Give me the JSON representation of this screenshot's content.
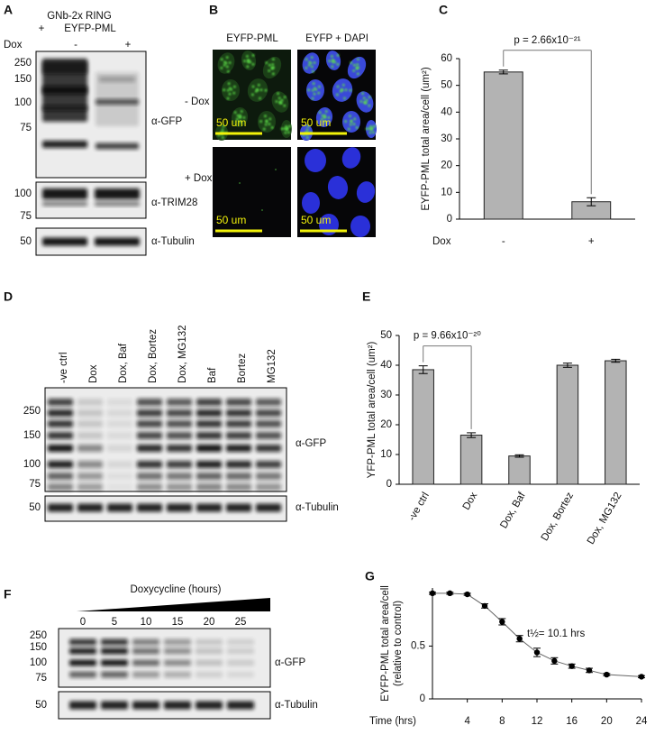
{
  "blot_a": {
    "panel": "A",
    "construct_line1": "GNb-2x RING",
    "construct_plus": "+",
    "construct_line2": "EYFP-PML",
    "dox": "Dox",
    "lanes": [
      "-",
      "+"
    ],
    "markers_gfp": [
      250,
      150,
      100,
      75
    ],
    "markers_trim": [
      100,
      75
    ],
    "markers_tub": [
      50
    ],
    "antibodies": [
      "α-GFP",
      "α-TRIM28",
      "α-Tubulin"
    ]
  },
  "micro_b": {
    "panel": "B",
    "columns": [
      "EYFP-PML",
      "EYFP + DAPI"
    ],
    "rows": [
      "- Dox",
      "+ Dox"
    ],
    "scale_bar": "50 um"
  },
  "blot_d": {
    "panel": "D",
    "lanes": [
      "-ve ctrl",
      "Dox",
      "Dox, Baf",
      "Dox, Bortez",
      "Dox, MG132",
      "Baf",
      "Bortez",
      "MG132"
    ],
    "markers_gfp": [
      250,
      150,
      100,
      75
    ],
    "markers_tub": [
      50
    ],
    "antibodies": [
      "α-GFP",
      "α-Tubulin"
    ]
  },
  "blot_f": {
    "panel": "F",
    "title": "Doxycycline (hours)",
    "lanes": [
      0,
      5,
      10,
      15,
      20,
      25
    ],
    "markers_gfp": [
      250,
      150,
      100,
      75
    ],
    "markers_tub": [
      50
    ],
    "antibodies": [
      "α-GFP",
      "α-Tubulin"
    ]
  },
  "chart_data": [
    {
      "type": "bar",
      "panel": "C",
      "y_label": "EYFP-PML total area/cell (um²)",
      "x_label": "Dox",
      "categories": [
        "-",
        "+"
      ],
      "values": [
        55,
        6.5
      ],
      "errors": [
        0.7,
        1.5
      ],
      "color": "#b3b3b3",
      "ylim": [
        0,
        60
      ],
      "yticks": [
        0,
        10,
        20,
        30,
        40,
        50,
        60
      ],
      "annotation": "p = 2.66x10⁻²¹"
    },
    {
      "type": "bar",
      "panel": "E",
      "y_label": "YFP-PML total area/cell (um²)",
      "categories": [
        "-ve ctrl",
        "Dox",
        "Dox, Baf",
        "Dox, Bortez",
        "Dox, MG132"
      ],
      "values": [
        38.5,
        16.5,
        9.5,
        40,
        41.5
      ],
      "errors": [
        1.3,
        0.8,
        0.4,
        0.7,
        0.5
      ],
      "color": "#b3b3b3",
      "ylim": [
        0,
        50
      ],
      "yticks": [
        0,
        10,
        20,
        30,
        40,
        50
      ],
      "annotation": "p = 9.66x10⁻²⁰"
    },
    {
      "type": "line",
      "panel": "G",
      "y_label": [
        "EYFP-PML total area/cell",
        "(relative to control)"
      ],
      "x_label": "Time (hrs)",
      "x": [
        0,
        2,
        4,
        6,
        8,
        10,
        12,
        14,
        16,
        18,
        20,
        24
      ],
      "values": [
        1,
        1,
        0.99,
        0.88,
        0.73,
        0.57,
        0.44,
        0.36,
        0.31,
        0.27,
        0.23,
        0.21
      ],
      "errors": [
        0.01,
        0.01,
        0.01,
        0.02,
        0.03,
        0.03,
        0.04,
        0.03,
        0.02,
        0.02,
        0.01,
        0.01
      ],
      "color": "#000000",
      "xlim": [
        0,
        24
      ],
      "xticks": [
        4,
        8,
        12,
        16,
        20,
        24
      ],
      "ylim": [
        0,
        1.05
      ],
      "yticks": [
        0,
        0.5
      ],
      "annotation": "t½= 10.1 hrs"
    }
  ]
}
